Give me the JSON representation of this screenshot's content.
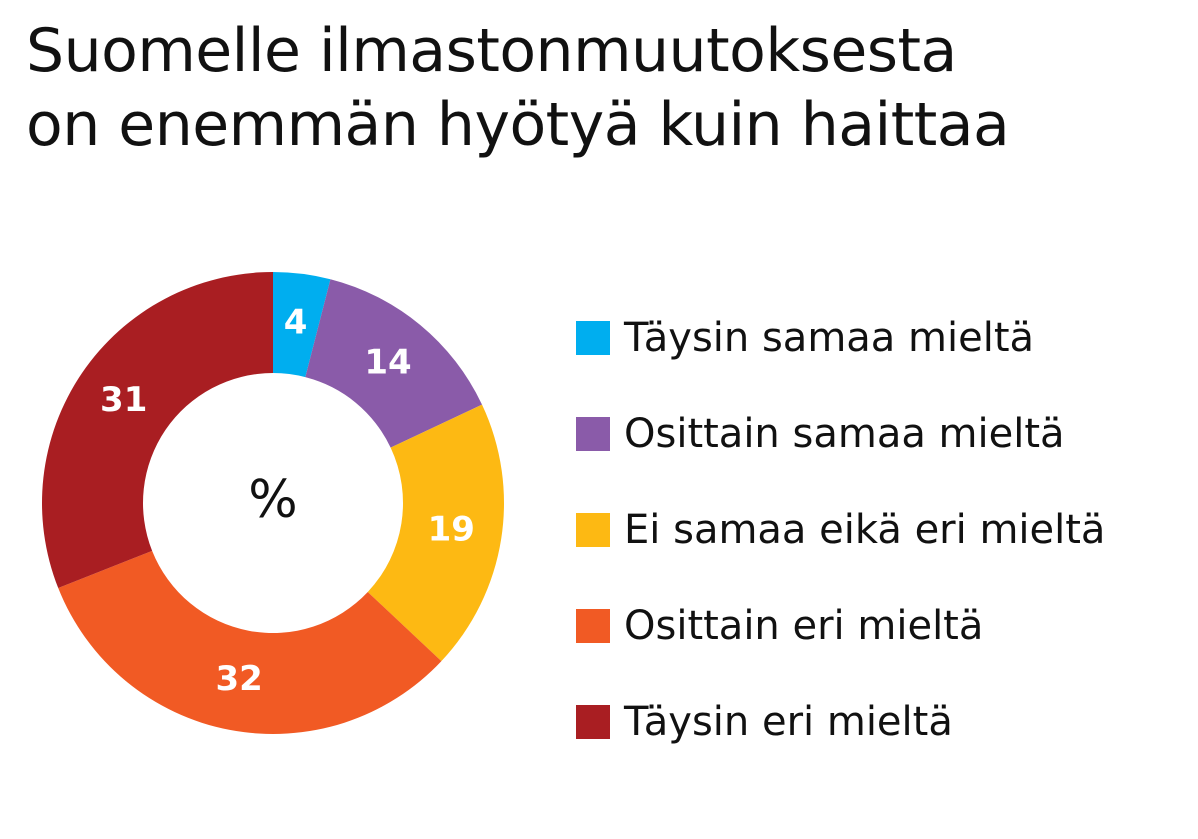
{
  "chart_data": {
    "type": "pie",
    "variant": "donut",
    "title_lines": [
      "Suomelle ilmastonmuutoksesta",
      "on enemmän hyötyä kuin haittaa"
    ],
    "center_label": "%",
    "unit": "%",
    "legend_position": "right",
    "slices": [
      {
        "label": "Täysin samaa mieltä",
        "value": 4,
        "color": "#00AEEF"
      },
      {
        "label": "Osittain samaa mieltä",
        "value": 14,
        "color": "#8A5BA9"
      },
      {
        "label": "Ei samaa eikä eri mieltä",
        "value": 19,
        "color": "#FDB913"
      },
      {
        "label": "Osittain eri mieltä",
        "value": 32,
        "color": "#F15A24"
      },
      {
        "label": "Täysin eri mieltä",
        "value": 31,
        "color": "#A91E22"
      }
    ]
  }
}
